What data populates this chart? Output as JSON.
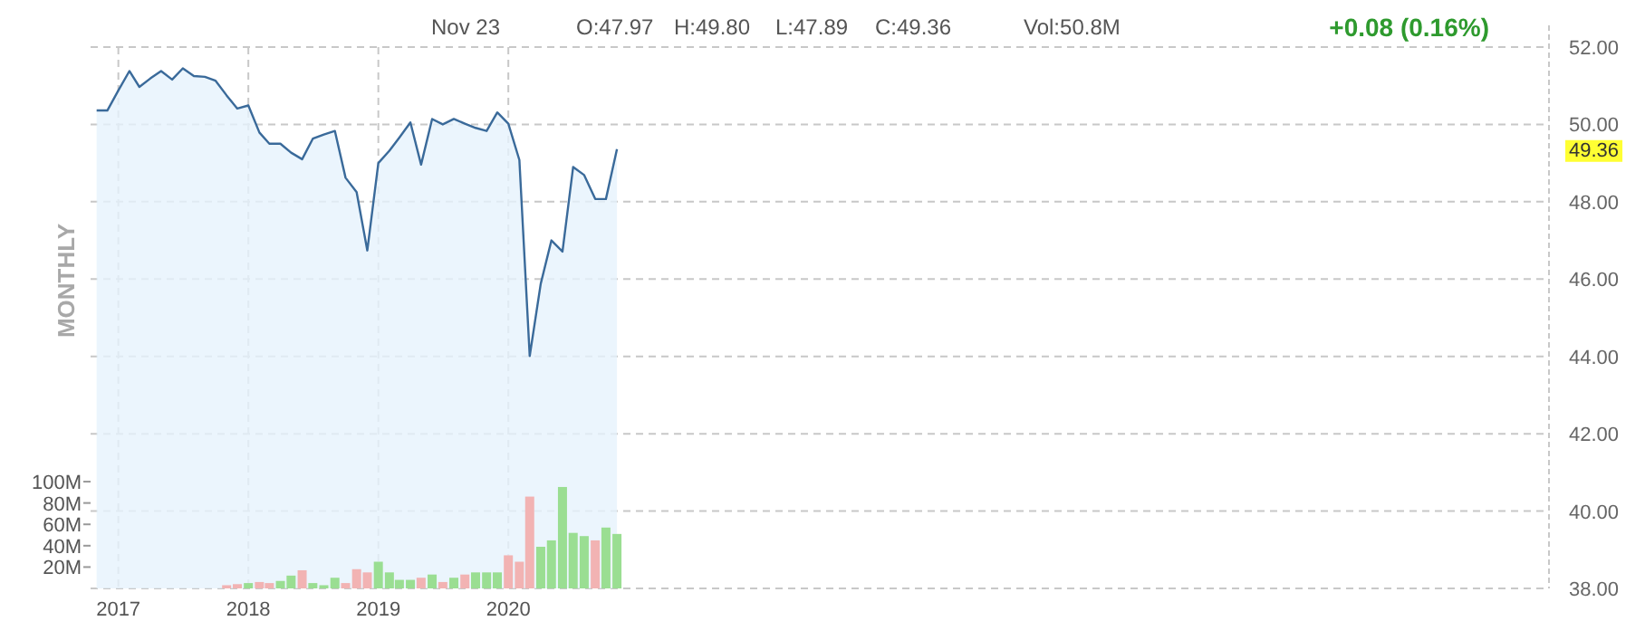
{
  "chart_data": {
    "type": "area",
    "xlim": [
      "2016-10-15",
      "2028-01"
    ],
    "xticks": [
      "2017",
      "2018",
      "2019",
      "2020"
    ],
    "ylim": [
      38,
      52
    ],
    "yticks": [
      {
        "value": 38,
        "label": "38.00"
      },
      {
        "value": 40,
        "label": "40.00"
      },
      {
        "value": 42,
        "label": "42.00"
      },
      {
        "value": 44,
        "label": "44.00"
      },
      {
        "value": 46,
        "label": "46.00"
      },
      {
        "value": 48,
        "label": "48.00"
      },
      {
        "value": 50,
        "label": "50.00"
      },
      {
        "value": 52,
        "label": "52.00"
      }
    ],
    "y2lim": [
      0,
      507
    ],
    "y2ticks": [
      {
        "value": 20,
        "label": "20M"
      },
      {
        "value": 40,
        "label": "40M"
      },
      {
        "value": 60,
        "label": "60M"
      },
      {
        "value": 80,
        "label": "80M"
      },
      {
        "value": 100,
        "label": "100M"
      }
    ],
    "grid": true,
    "series": [
      {
        "color": "#3a6a9a",
        "x": [
          "2016-11",
          "2016-12",
          "2017-01",
          "2017-02",
          "2017-03",
          "2017-04",
          "2017-05",
          "2017-06",
          "2017-07",
          "2017-08",
          "2017-09",
          "2017-10",
          "2017-11",
          "2017-12",
          "2018-01",
          "2018-02",
          "2018-03",
          "2018-04",
          "2018-05",
          "2018-06",
          "2018-07",
          "2018-08",
          "2018-09",
          "2018-10",
          "2018-11",
          "2018-12",
          "2019-01",
          "2019-02",
          "2019-03",
          "2019-04",
          "2019-05",
          "2019-06",
          "2019-07",
          "2019-08",
          "2019-09",
          "2019-10",
          "2019-11",
          "2019-12",
          "2020-01",
          "2020-02",
          "2020-03",
          "2020-04",
          "2020-05",
          "2020-06",
          "2020-07",
          "2020-08",
          "2020-09",
          "2020-10",
          "2020-11"
        ],
        "values": [
          50.36,
          50.36,
          50.88,
          51.38,
          50.97,
          51.19,
          51.38,
          51.16,
          51.45,
          51.25,
          51.23,
          51.13,
          50.75,
          50.41,
          50.49,
          49.79,
          49.5,
          49.5,
          49.27,
          49.1,
          49.63,
          49.74,
          49.83,
          48.62,
          48.25,
          46.74,
          49.0,
          49.32,
          49.66,
          50.05,
          48.96,
          50.14,
          50.0,
          50.14,
          50.02,
          49.91,
          49.83,
          50.31,
          50.02,
          49.08,
          44.01,
          45.88,
          47.0,
          46.71,
          48.9,
          48.69,
          48.07,
          48.07,
          49.36
        ]
      },
      {
        "type": "bar",
        "axis": "y2",
        "x": [
          "2017-11",
          "2017-12",
          "2018-01",
          "2018-02",
          "2018-03",
          "2018-04",
          "2018-05",
          "2018-06",
          "2018-07",
          "2018-08",
          "2018-09",
          "2018-10",
          "2018-11",
          "2018-12",
          "2019-01",
          "2019-02",
          "2019-03",
          "2019-04",
          "2019-05",
          "2019-06",
          "2019-07",
          "2019-08",
          "2019-09",
          "2019-10",
          "2019-11",
          "2019-12",
          "2020-01",
          "2020-02",
          "2020-03",
          "2020-04",
          "2020-05",
          "2020-06",
          "2020-07",
          "2020-08",
          "2020-09",
          "2020-10",
          "2020-11"
        ],
        "values": [
          3,
          4,
          5,
          6,
          5,
          7,
          12,
          17,
          5,
          3,
          10,
          5,
          18,
          15,
          25,
          15,
          8,
          8,
          10,
          13,
          6,
          10,
          13,
          15,
          15,
          15,
          31,
          25,
          86,
          39,
          45,
          95,
          52,
          49,
          45,
          57,
          51
        ],
        "colors": [
          "#f2b3b3",
          "#f2b3b3",
          "#9ade92",
          "#f2b3b3",
          "#f2b3b3",
          "#9ade92",
          "#9ade92",
          "#f2b3b3",
          "#9ade92",
          "#9ade92",
          "#9ade92",
          "#f2b3b3",
          "#f2b3b3",
          "#f2b3b3",
          "#9ade92",
          "#9ade92",
          "#9ade92",
          "#9ade92",
          "#f2b3b3",
          "#9ade92",
          "#f2b3b3",
          "#9ade92",
          "#f2b3b3",
          "#9ade92",
          "#9ade92",
          "#9ade92",
          "#f2b3b3",
          "#f2b3b3",
          "#f2b3b3",
          "#9ade92",
          "#9ade92",
          "#9ade92",
          "#9ade92",
          "#9ade92",
          "#f2b3b3",
          "#9ade92",
          "#9ade92"
        ]
      }
    ],
    "annotations": [
      "Nov 23",
      "O:47.97",
      "H:49.80",
      "L:47.89",
      "C:49.36",
      "Vol:50.8M",
      "+0.08 (0.16%)",
      "MONTHLY",
      "49.36"
    ]
  }
}
